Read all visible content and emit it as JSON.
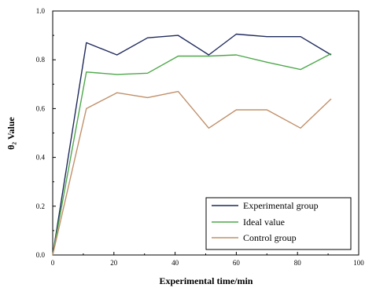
{
  "chart_data": {
    "type": "line",
    "title": "",
    "xlabel": "Experimental time/min",
    "ylabel": "θ₂ Value",
    "xlim": [
      0,
      100
    ],
    "ylim": [
      0.0,
      1.0
    ],
    "x_ticks": [
      0,
      20,
      40,
      60,
      80,
      100
    ],
    "y_ticks": [
      0.0,
      0.2,
      0.4,
      0.6,
      0.8,
      1.0
    ],
    "x_tick_labels": [
      "0",
      "20",
      "40",
      "60",
      "80",
      "100"
    ],
    "y_tick_labels": [
      "0.0",
      "0.2",
      "0.4",
      "0.6",
      "0.8",
      "1.0"
    ],
    "legend_position": "bottom-right",
    "grid": false,
    "x": [
      0,
      11,
      21,
      31,
      41,
      51,
      60,
      70,
      81,
      91
    ],
    "series": [
      {
        "name": "Experimental group",
        "color": "#1f2a5c",
        "values": [
          0.0,
          0.87,
          0.82,
          0.89,
          0.9,
          0.82,
          0.905,
          0.895,
          0.895,
          0.82
        ]
      },
      {
        "name": "Ideal value",
        "color": "#4da84a",
        "values": [
          0.0,
          0.75,
          0.74,
          0.745,
          0.815,
          0.815,
          0.82,
          0.79,
          0.76,
          0.825
        ]
      },
      {
        "name": "Control group",
        "color": "#c0906a",
        "values": [
          0.0,
          0.6,
          0.665,
          0.645,
          0.67,
          0.52,
          0.595,
          0.595,
          0.52,
          0.64
        ]
      }
    ]
  }
}
